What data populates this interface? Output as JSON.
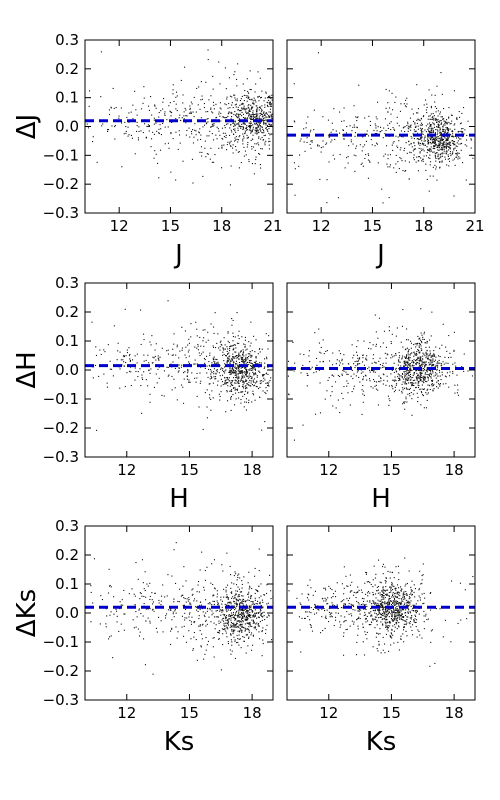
{
  "chart_data": [
    {
      "type": "scatter",
      "panel": "J-left",
      "xlabel": "J",
      "ylabel": "ΔJ",
      "xlim": [
        10.0,
        21.0
      ],
      "ylim": [
        -0.3,
        0.3
      ],
      "xticks": [
        "12",
        "15",
        "18",
        "21"
      ],
      "yticks": [
        "0.3",
        "0.2",
        "0.1",
        "0.0",
        "−0.1",
        "−0.2",
        "−0.3"
      ],
      "mean_offset": 0.02,
      "density_peak": {
        "x": 20.0,
        "y": 0.03
      }
    },
    {
      "type": "scatter",
      "panel": "J-right",
      "xlabel": "J",
      "ylabel": "",
      "xlim": [
        10.0,
        21.0
      ],
      "ylim": [
        -0.3,
        0.3
      ],
      "xticks": [
        "12",
        "15",
        "18",
        "21"
      ],
      "mean_offset": -0.03,
      "density_peak": {
        "x": 19.0,
        "y": -0.04
      }
    },
    {
      "type": "scatter",
      "panel": "H-left",
      "xlabel": "H",
      "ylabel": "ΔH",
      "xlim": [
        10.0,
        19.0
      ],
      "ylim": [
        -0.3,
        0.3
      ],
      "xticks": [
        "12",
        "15",
        "18"
      ],
      "yticks": [
        "0.3",
        "0.2",
        "0.1",
        "0.0",
        "−0.1",
        "−0.2",
        "−0.3"
      ],
      "mean_offset": 0.015,
      "density_peak": {
        "x": 17.5,
        "y": 0.0
      }
    },
    {
      "type": "scatter",
      "panel": "H-right",
      "xlabel": "H",
      "ylabel": "",
      "xlim": [
        10.0,
        19.0
      ],
      "ylim": [
        -0.3,
        0.3
      ],
      "xticks": [
        "12",
        "15",
        "18"
      ],
      "mean_offset": 0.005,
      "density_peak": {
        "x": 16.4,
        "y": 0.01
      }
    },
    {
      "type": "scatter",
      "panel": "Ks-left",
      "xlabel": "Ks",
      "ylabel": "ΔKs",
      "xlim": [
        10.0,
        19.0
      ],
      "ylim": [
        -0.3,
        0.3
      ],
      "xticks": [
        "12",
        "15",
        "18"
      ],
      "yticks": [
        "0.3",
        "0.2",
        "0.1",
        "0.0",
        "−0.1",
        "−0.2",
        "−0.3"
      ],
      "mean_offset": 0.02,
      "density_peak": {
        "x": 17.5,
        "y": 0.0
      }
    },
    {
      "type": "scatter",
      "panel": "Ks-right",
      "xlabel": "Ks",
      "ylabel": "",
      "xlim": [
        10.0,
        19.0
      ],
      "ylim": [
        -0.3,
        0.3
      ],
      "xticks": [
        "12",
        "15",
        "18"
      ],
      "mean_offset": 0.02,
      "density_peak": {
        "x": 15.2,
        "y": 0.02
      }
    }
  ],
  "colors": {
    "points": "#111111",
    "reference_line": "#0000cc",
    "frame": "#000000"
  }
}
